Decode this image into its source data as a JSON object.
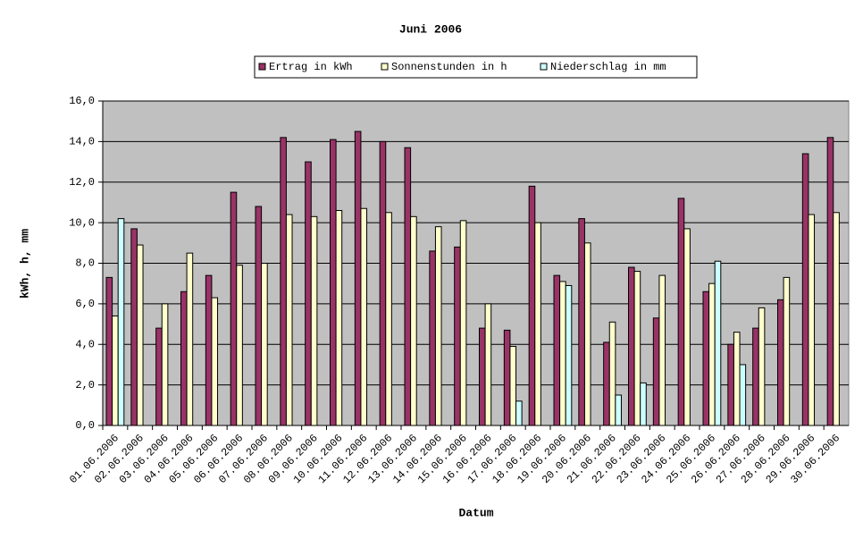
{
  "chart_data": {
    "type": "bar",
    "title": "Juni 2006",
    "xlabel": "Datum",
    "ylabel": "kWh, h, mm",
    "categories": [
      "01.06.2006",
      "02.06.2006",
      "03.06.2006",
      "04.06.2006",
      "05.06.2006",
      "06.06.2006",
      "07.06.2006",
      "08.06.2006",
      "09.06.2006",
      "10.06.2006",
      "11.06.2006",
      "12.06.2006",
      "13.06.2006",
      "14.06.2006",
      "15.06.2006",
      "16.06.2006",
      "17.06.2006",
      "18.06.2006",
      "19.06.2006",
      "20.06.2006",
      "21.06.2006",
      "22.06.2006",
      "23.06.2006",
      "24.06.2006",
      "25.06.2006",
      "26.06.2006",
      "27.06.2006",
      "28.06.2006",
      "29.06.2006",
      "30.06.2006"
    ],
    "series": [
      {
        "name": "Ertrag in kWh",
        "color": "#993366",
        "values": [
          7.3,
          9.7,
          4.8,
          6.6,
          7.4,
          11.5,
          10.8,
          14.2,
          13.0,
          14.1,
          14.5,
          14.0,
          13.7,
          8.6,
          8.8,
          4.8,
          4.7,
          11.8,
          7.4,
          10.2,
          4.1,
          7.8,
          5.3,
          11.2,
          6.6,
          4.0,
          4.8,
          6.2,
          13.4,
          14.2
        ]
      },
      {
        "name": "Sonnenstunden in h",
        "color": "#ffffcc",
        "values": [
          5.4,
          8.9,
          6.0,
          8.5,
          6.3,
          7.9,
          8.0,
          10.4,
          10.3,
          10.6,
          10.7,
          10.5,
          10.3,
          9.8,
          10.1,
          6.0,
          3.9,
          10.0,
          7.1,
          9.0,
          5.1,
          7.6,
          7.4,
          9.7,
          7.0,
          4.6,
          5.8,
          7.3,
          10.4,
          10.5
        ]
      },
      {
        "name": "Niederschlag in mm",
        "color": "#ccffff",
        "values": [
          10.2,
          null,
          null,
          null,
          null,
          null,
          null,
          null,
          null,
          null,
          null,
          null,
          null,
          null,
          null,
          null,
          1.2,
          null,
          6.9,
          null,
          1.5,
          2.1,
          null,
          null,
          8.1,
          3.0,
          null,
          null,
          null,
          null
        ]
      }
    ],
    "ylim": [
      0,
      16
    ],
    "yticks": [
      {
        "value": 0,
        "label": "0,0"
      },
      {
        "value": 2,
        "label": "2,0"
      },
      {
        "value": 4,
        "label": "4,0"
      },
      {
        "value": 6,
        "label": "6,0"
      },
      {
        "value": 8,
        "label": "8,0"
      },
      {
        "value": 10,
        "label": "10,0"
      },
      {
        "value": 12,
        "label": "12,0"
      },
      {
        "value": 14,
        "label": "14,0"
      },
      {
        "value": 16,
        "label": "16,0"
      }
    ],
    "grid": true,
    "plot_background": "#c0c0c0",
    "legend": "top"
  }
}
